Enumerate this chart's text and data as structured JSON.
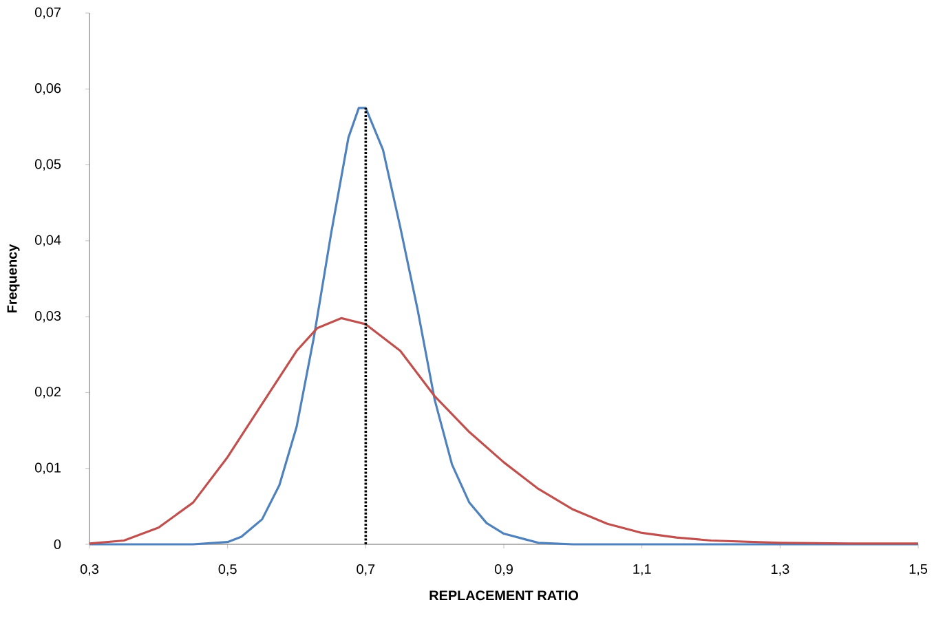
{
  "chart_data": {
    "type": "line",
    "xlabel": "REPLACEMENT RATIO",
    "ylabel": "Frequency",
    "xlim": [
      0.3,
      1.5
    ],
    "ylim": [
      0,
      0.07
    ],
    "xticks": [
      {
        "value": 0.3,
        "label": "0,3"
      },
      {
        "value": 0.5,
        "label": "0,5"
      },
      {
        "value": 0.7,
        "label": "0,7"
      },
      {
        "value": 0.9,
        "label": "0,9"
      },
      {
        "value": 1.1,
        "label": "1,1"
      },
      {
        "value": 1.3,
        "label": "1,3"
      },
      {
        "value": 1.5,
        "label": "1,5"
      }
    ],
    "yticks": [
      0,
      {
        "value": 0.01,
        "label": "0,01"
      },
      {
        "value": 0.02,
        "label": "0,02"
      },
      {
        "value": 0.03,
        "label": "0,03"
      },
      {
        "value": 0.04,
        "label": "0,04"
      },
      {
        "value": 0.05,
        "label": "0,05"
      },
      {
        "value": 0.06,
        "label": "0,06"
      },
      {
        "value": 0.07,
        "label": "0,07"
      }
    ],
    "series": [
      {
        "color": "#4f81bd",
        "x": [
          0.3,
          0.45,
          0.5,
          0.52,
          0.55,
          0.575,
          0.6,
          0.625,
          0.65,
          0.675,
          0.69,
          0.7,
          0.725,
          0.75,
          0.775,
          0.8,
          0.825,
          0.85,
          0.875,
          0.9,
          0.95,
          1.0,
          1.5
        ],
        "values": [
          0,
          0,
          0.0003,
          0.001,
          0.0033,
          0.0078,
          0.0155,
          0.0273,
          0.041,
          0.0536,
          0.0575,
          0.0575,
          0.052,
          0.0418,
          0.031,
          0.019,
          0.0105,
          0.0055,
          0.0028,
          0.0014,
          0.0002,
          0,
          0
        ]
      },
      {
        "color": "#c0504d",
        "x": [
          0.3,
          0.35,
          0.4,
          0.45,
          0.5,
          0.55,
          0.6,
          0.63,
          0.665,
          0.7,
          0.75,
          0.8,
          0.85,
          0.9,
          0.95,
          1.0,
          1.05,
          1.1,
          1.15,
          1.2,
          1.3,
          1.4,
          1.5
        ],
        "values": [
          0.0001,
          0.0005,
          0.0022,
          0.0055,
          0.0115,
          0.0185,
          0.0255,
          0.0285,
          0.0298,
          0.029,
          0.0255,
          0.0195,
          0.0148,
          0.0108,
          0.0073,
          0.0046,
          0.0027,
          0.0015,
          0.0009,
          0.0005,
          0.0002,
          0.0001,
          0.0001
        ]
      }
    ],
    "ref_lines": [
      {
        "axis": "x",
        "value": 0.7,
        "color": "#000000",
        "line_style": "dotted"
      }
    ]
  }
}
